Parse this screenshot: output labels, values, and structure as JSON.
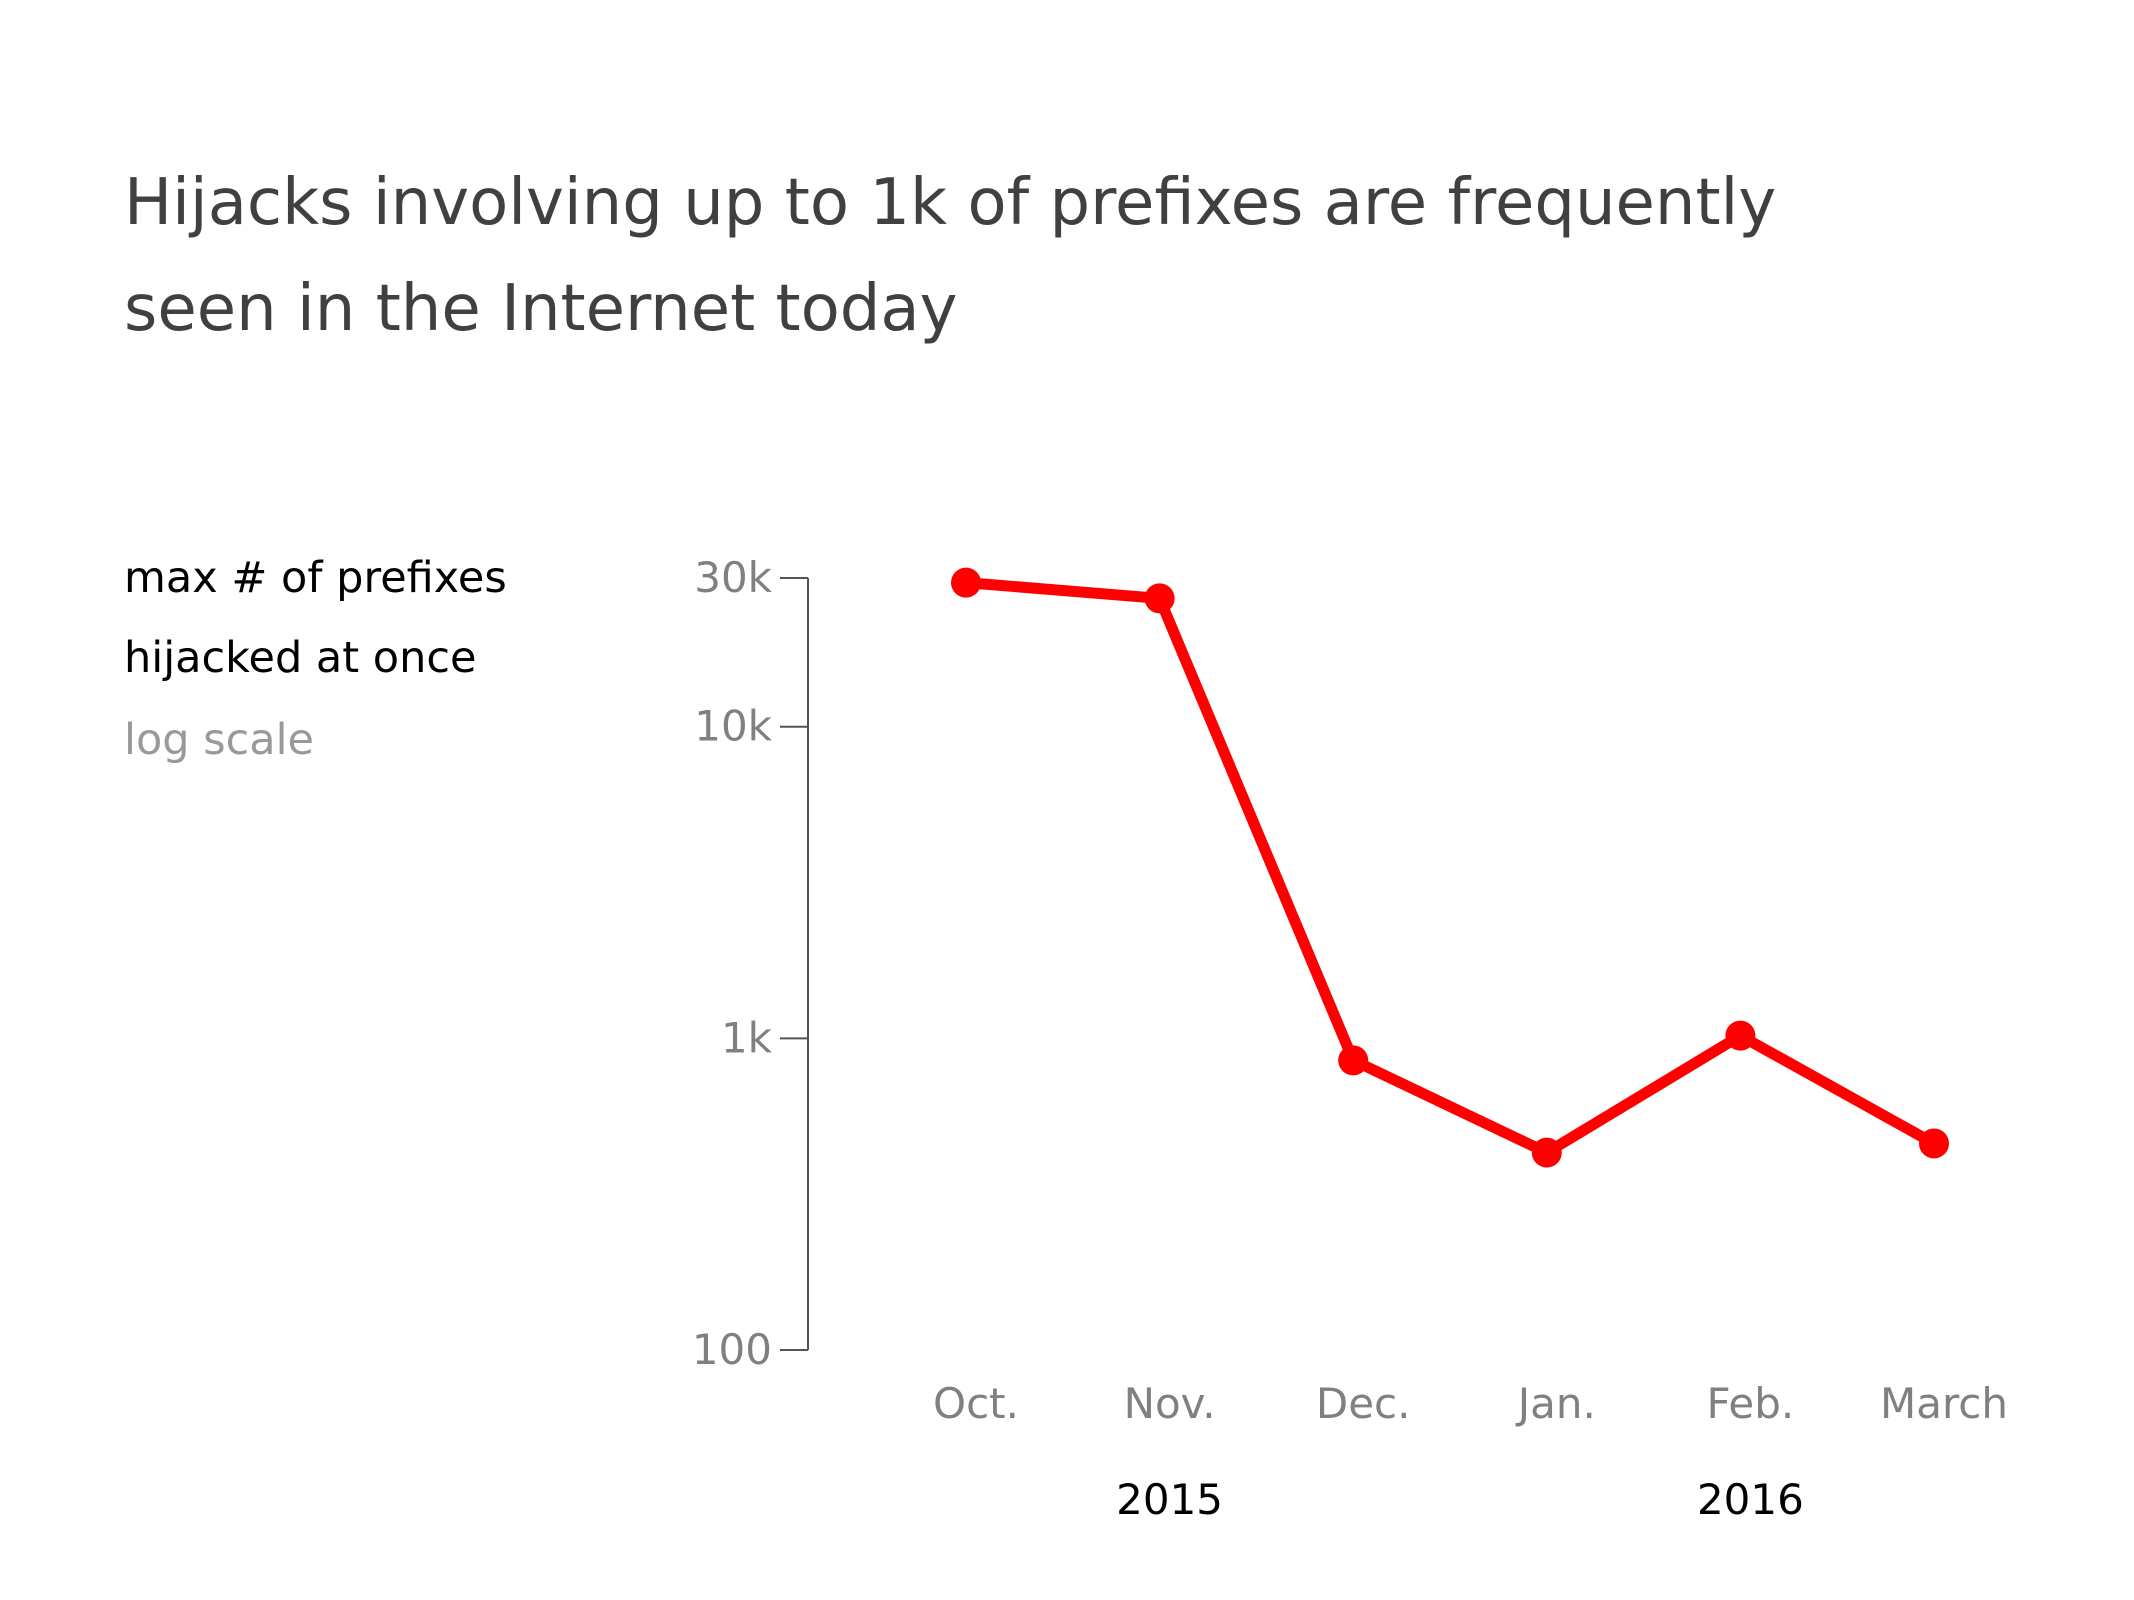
{
  "title_lines": [
    "Hijacks involving up to 1k of prefixes are frequently",
    "seen in the Internet today"
  ],
  "y_label_lines": [
    "max # of prefixes",
    "hijacked at once"
  ],
  "scale_note": "log scale",
  "colors": {
    "series": "#ff0000",
    "title": "#404040",
    "axis": "#555555",
    "tick_text": "#808080",
    "scale_note": "#999999",
    "year_text": "#000000"
  },
  "chart_data": {
    "type": "line",
    "title": "Hijacks involving up to 1k of prefixes are frequently seen in the Internet today",
    "ylabel": "max # of prefixes hijacked at once",
    "yscale": "log",
    "ylim": [
      100,
      30000
    ],
    "yticks": [
      {
        "value": 30000,
        "label": "30k"
      },
      {
        "value": 10000,
        "label": "10k"
      },
      {
        "value": 1000,
        "label": "1k"
      },
      {
        "value": 100,
        "label": "100"
      }
    ],
    "categories": [
      "Oct.",
      "Nov.",
      "Dec.",
      "Jan.",
      "Feb.",
      "March"
    ],
    "year_labels": [
      {
        "label": "2015",
        "category_index": 1
      },
      {
        "label": "2016",
        "category_index": 4
      }
    ],
    "series": [
      {
        "values": [
          29000,
          25800,
          850,
          430,
          1020,
          460
        ]
      }
    ],
    "grid": false,
    "legend": "none"
  }
}
